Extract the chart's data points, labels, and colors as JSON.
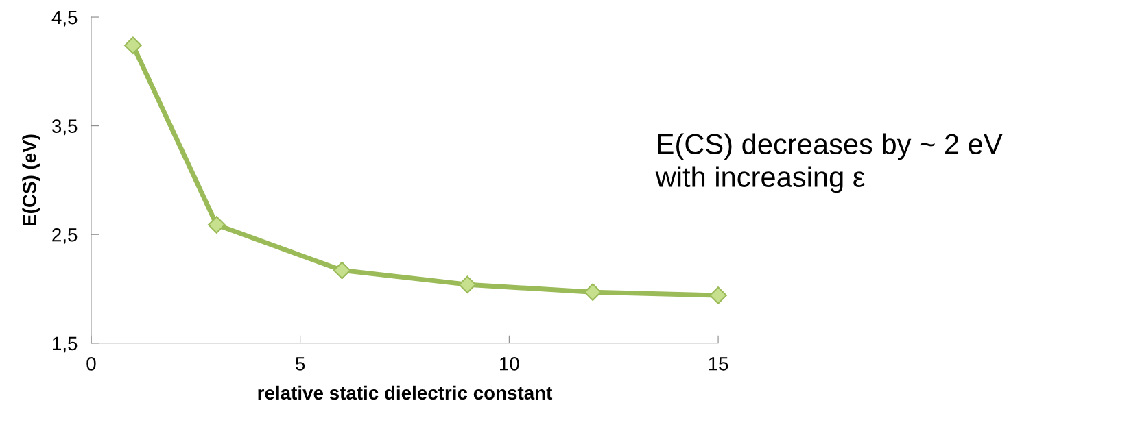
{
  "chart_data": {
    "type": "line",
    "xlabel": "relative static dielectric constant",
    "ylabel": "E(CS) (eV)",
    "x": [
      1,
      3,
      6,
      9,
      12,
      15
    ],
    "series": [
      {
        "color": "#9bbb59",
        "values": [
          4.24,
          2.59,
          2.17,
          2.04,
          1.97,
          1.94
        ]
      }
    ],
    "xlim": [
      0,
      15
    ],
    "xticks": [
      0,
      5,
      10,
      15
    ],
    "ylim": [
      1.5,
      4.5
    ],
    "yticks": [
      {
        "value": 1.5,
        "label": "1,5"
      },
      {
        "value": 2.5,
        "label": "2,5"
      },
      {
        "value": 3.5,
        "label": "3,5"
      },
      {
        "value": 4.5,
        "label": "4,5"
      }
    ],
    "grid": false,
    "legend": false,
    "marker": "diamond",
    "line_style": "solid",
    "annotations": [
      "E(CS) decreases by ~ 2 eV\nwith increasing ε"
    ]
  }
}
